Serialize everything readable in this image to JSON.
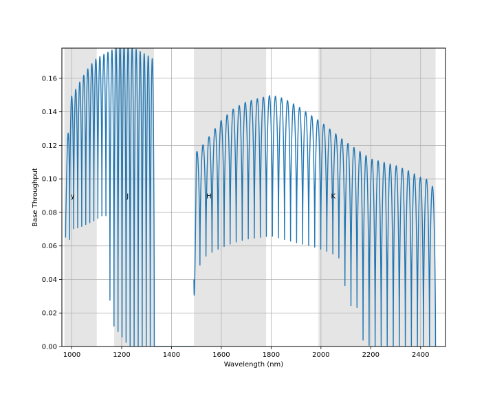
{
  "chart_data": {
    "type": "line",
    "title": "",
    "xlabel": "Wavelength (nm)",
    "ylabel": "Base Throughput",
    "xlim": [
      960,
      2500
    ],
    "ylim": [
      0,
      0.178
    ],
    "grid": true,
    "x_ticks": [
      1000,
      1200,
      1400,
      1600,
      1800,
      2000,
      2200,
      2400
    ],
    "x_tick_labels": [
      "1000",
      "1200",
      "1400",
      "1600",
      "1800",
      "2000",
      "2200",
      "2400"
    ],
    "y_ticks": [
      0,
      0.02,
      0.04,
      0.06,
      0.08,
      0.1,
      0.12,
      0.14,
      0.16
    ],
    "y_tick_labels": [
      "0.00",
      "0.02",
      "0.04",
      "0.06",
      "0.08",
      "0.10",
      "0.12",
      "0.14",
      "0.16"
    ],
    "bands": [
      {
        "label": "y",
        "range": [
          970,
          1100
        ],
        "label_x": 995,
        "label_y": 0.09
      },
      {
        "label": "J",
        "range": [
          1170,
          1330
        ],
        "label_x": 1220,
        "label_y": 0.09
      },
      {
        "label": "H",
        "range": [
          1490,
          1780
        ],
        "label_x": 1540,
        "label_y": 0.09
      },
      {
        "label": "K",
        "range": [
          1990,
          2460
        ],
        "label_x": 2040,
        "label_y": 0.09
      }
    ],
    "series": [
      {
        "color": "#1f77b4",
        "fringe_segments": [
          {
            "x_range": [
              975,
              1331
            ],
            "orders": 22,
            "envelope": [
              [
                975,
                0.095
              ],
              [
                990,
                0.147
              ],
              [
                1010,
                0.152
              ],
              [
                1040,
                0.16
              ],
              [
                1070,
                0.167
              ],
              [
                1100,
                0.172
              ],
              [
                1150,
                0.176
              ],
              [
                1200,
                0.18
              ],
              [
                1250,
                0.178
              ],
              [
                1300,
                0.174
              ],
              [
                1331,
                0.171
              ]
            ],
            "minima": [
              [
                975,
                0.065
              ],
              [
                990,
                0.063
              ],
              [
                1000,
                0.07
              ],
              [
                1030,
                0.071
              ],
              [
                1060,
                0.073
              ],
              [
                1090,
                0.075
              ],
              [
                1120,
                0.078
              ],
              [
                1145,
                0.078
              ],
              [
                1155,
                0.015
              ],
              [
                1180,
                0.01
              ],
              [
                1230,
                0.0
              ],
              [
                1280,
                0.0
              ],
              [
                1331,
                0.0
              ]
            ]
          },
          {
            "x_range": [
              1490,
              2460
            ],
            "orders": 40,
            "envelope": [
              [
                1490,
                0.0
              ],
              [
                1500,
                0.116
              ],
              [
                1520,
                0.119
              ],
              [
                1550,
                0.125
              ],
              [
                1600,
                0.135
              ],
              [
                1650,
                0.142
              ],
              [
                1700,
                0.146
              ],
              [
                1750,
                0.148
              ],
              [
                1800,
                0.15
              ],
              [
                1850,
                0.148
              ],
              [
                1900,
                0.144
              ],
              [
                1950,
                0.139
              ],
              [
                2000,
                0.134
              ],
              [
                2050,
                0.128
              ],
              [
                2100,
                0.122
              ],
              [
                2150,
                0.117
              ],
              [
                2200,
                0.112
              ],
              [
                2300,
                0.108
              ],
              [
                2350,
                0.105
              ],
              [
                2400,
                0.101
              ],
              [
                2440,
                0.099
              ],
              [
                2460,
                0.09
              ]
            ],
            "minima": [
              [
                1500,
                0.04
              ],
              [
                1520,
                0.052
              ],
              [
                1560,
                0.056
              ],
              [
                1600,
                0.059
              ],
              [
                1650,
                0.062
              ],
              [
                1700,
                0.064
              ],
              [
                1750,
                0.065
              ],
              [
                1800,
                0.066
              ],
              [
                1850,
                0.064
              ],
              [
                1900,
                0.062
              ],
              [
                1960,
                0.06
              ],
              [
                2000,
                0.058
              ],
              [
                2040,
                0.056
              ],
              [
                2080,
                0.052
              ],
              [
                2110,
                0.023
              ],
              [
                2140,
                0.027
              ],
              [
                2170,
                0.003
              ],
              [
                2200,
                0.0
              ],
              [
                2460,
                0.0
              ]
            ]
          }
        ],
        "flat_segments": [
          {
            "x": [
              1331,
              1490
            ],
            "y": 0.0
          }
        ]
      }
    ]
  }
}
